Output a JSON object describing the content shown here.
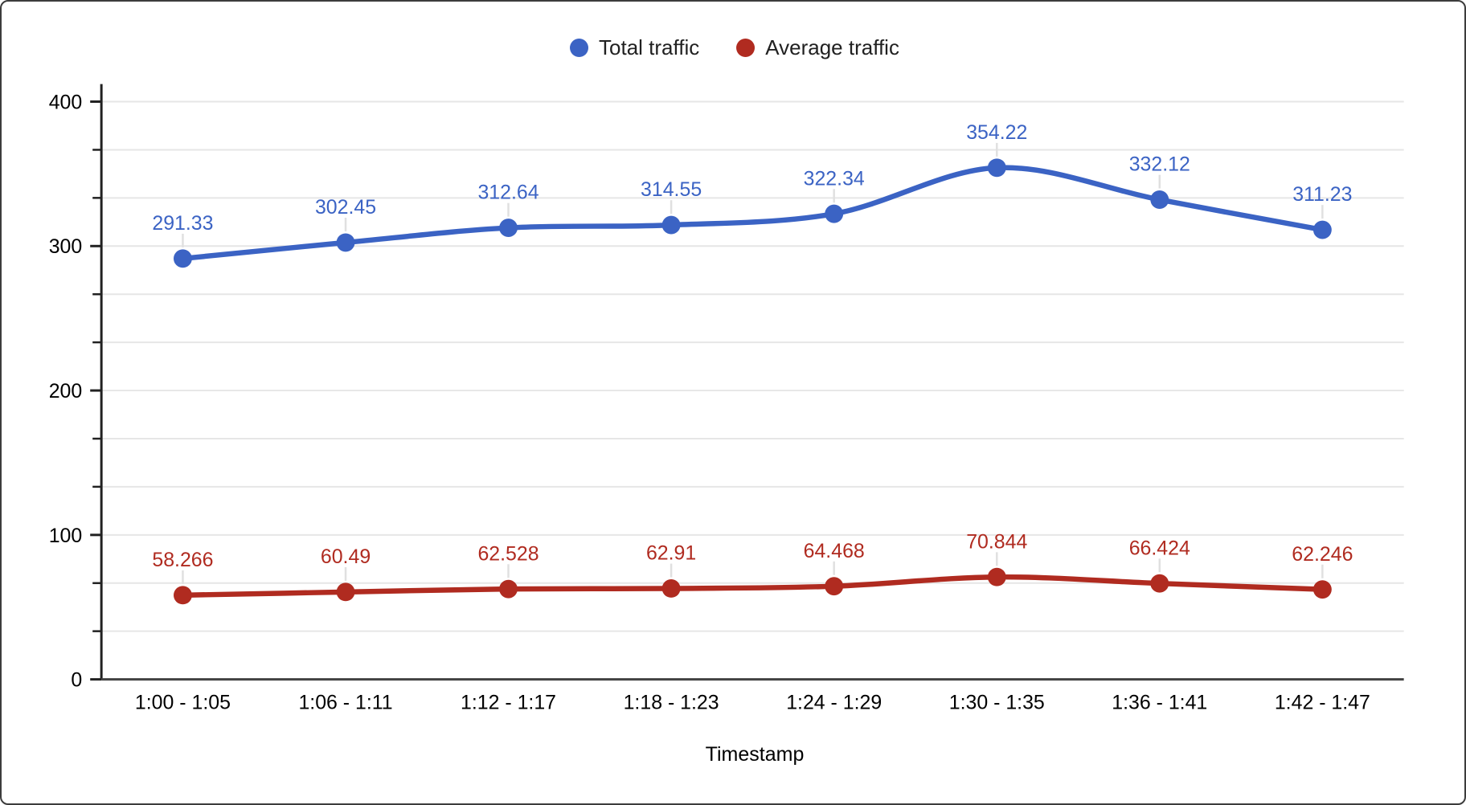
{
  "chart_data": {
    "type": "line",
    "smooth": true,
    "title": "",
    "xlabel": "Timestamp",
    "ylabel": "",
    "x_categories": [
      "1:00 - 1:05",
      "1:06 - 1:11",
      "1:12 - 1:17",
      "1:18 - 1:23",
      "1:24 - 1:29",
      "1:30 - 1:35",
      "1:36 - 1:41",
      "1:42 - 1:47"
    ],
    "ylim": [
      0,
      400
    ],
    "yticks": [
      0,
      100,
      200,
      300,
      400
    ],
    "ytick_labels": [
      "0",
      "100",
      "200",
      "300",
      "400"
    ],
    "minor_divisions_per_major": 3,
    "grid": true,
    "legend_position": "top",
    "series": [
      {
        "name": "Total traffic",
        "color": "#3B63C4",
        "values": [
          291.33,
          302.45,
          312.64,
          314.55,
          322.34,
          354.22,
          332.12,
          311.23
        ],
        "point_labels": [
          "291.33",
          "302.45",
          "312.64",
          "314.55",
          "322.34",
          "354.22",
          "332.12",
          "311.23"
        ]
      },
      {
        "name": "Average traffic",
        "color": "#B02B20",
        "values": [
          58.266,
          60.49,
          62.528,
          62.91,
          64.468,
          70.844,
          66.424,
          62.246
        ],
        "point_labels": [
          "58.266",
          "60.49",
          "62.528",
          "62.91",
          "64.468",
          "70.844",
          "66.424",
          "62.246"
        ]
      }
    ],
    "style": {
      "grid_color": "#E6E6E6",
      "axis_color": "#212121",
      "baseline_color": "#424242",
      "tick_text_color": "#000000",
      "leader_line_color": "#E0E0E0",
      "background": "#FFFFFF"
    }
  }
}
